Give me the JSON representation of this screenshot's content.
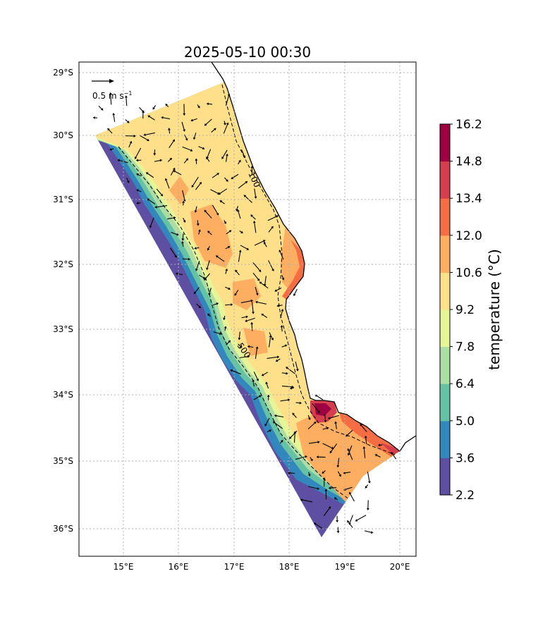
{
  "title": "2025-05-10 00:30",
  "lon_ticks": [
    "15°E",
    "16°E",
    "17°E",
    "18°E",
    "19°E",
    "20°E"
  ],
  "lat_ticks": [
    "29°S",
    "30°S",
    "31°S",
    "32°S",
    "33°S",
    "34°S",
    "35°S",
    "36°S"
  ],
  "quiver_key": {
    "label": "0.5 m s",
    "exponent": "−1"
  },
  "contour_labels": [
    "100",
    "500"
  ],
  "colorbar": {
    "label": "temperature (°C)",
    "ticks": [
      "2.2",
      "3.6",
      "5.0",
      "6.4",
      "7.8",
      "9.2",
      "10.6",
      "12.0",
      "13.4",
      "14.8",
      "16.2"
    ],
    "colors": [
      "#5e4fa2",
      "#3288bd",
      "#66c2a5",
      "#abdda4",
      "#e6f598",
      "#fee08b",
      "#fdae61",
      "#f46d43",
      "#d53e4f",
      "#9e0142"
    ]
  },
  "chart_data": {
    "type": "heatmap",
    "title": "2025-05-10 00:30",
    "variable": "temperature (°C)",
    "xlim": [
      14.2,
      20.3
    ],
    "ylim": [
      -36.4,
      -28.85
    ],
    "color_levels": [
      2.2,
      3.6,
      5.0,
      6.4,
      7.8,
      9.2,
      10.6,
      12.0,
      13.4,
      14.8,
      16.2
    ],
    "contour_depths": [
      100,
      500
    ],
    "quiver_scale_m_s": 0.5
  }
}
